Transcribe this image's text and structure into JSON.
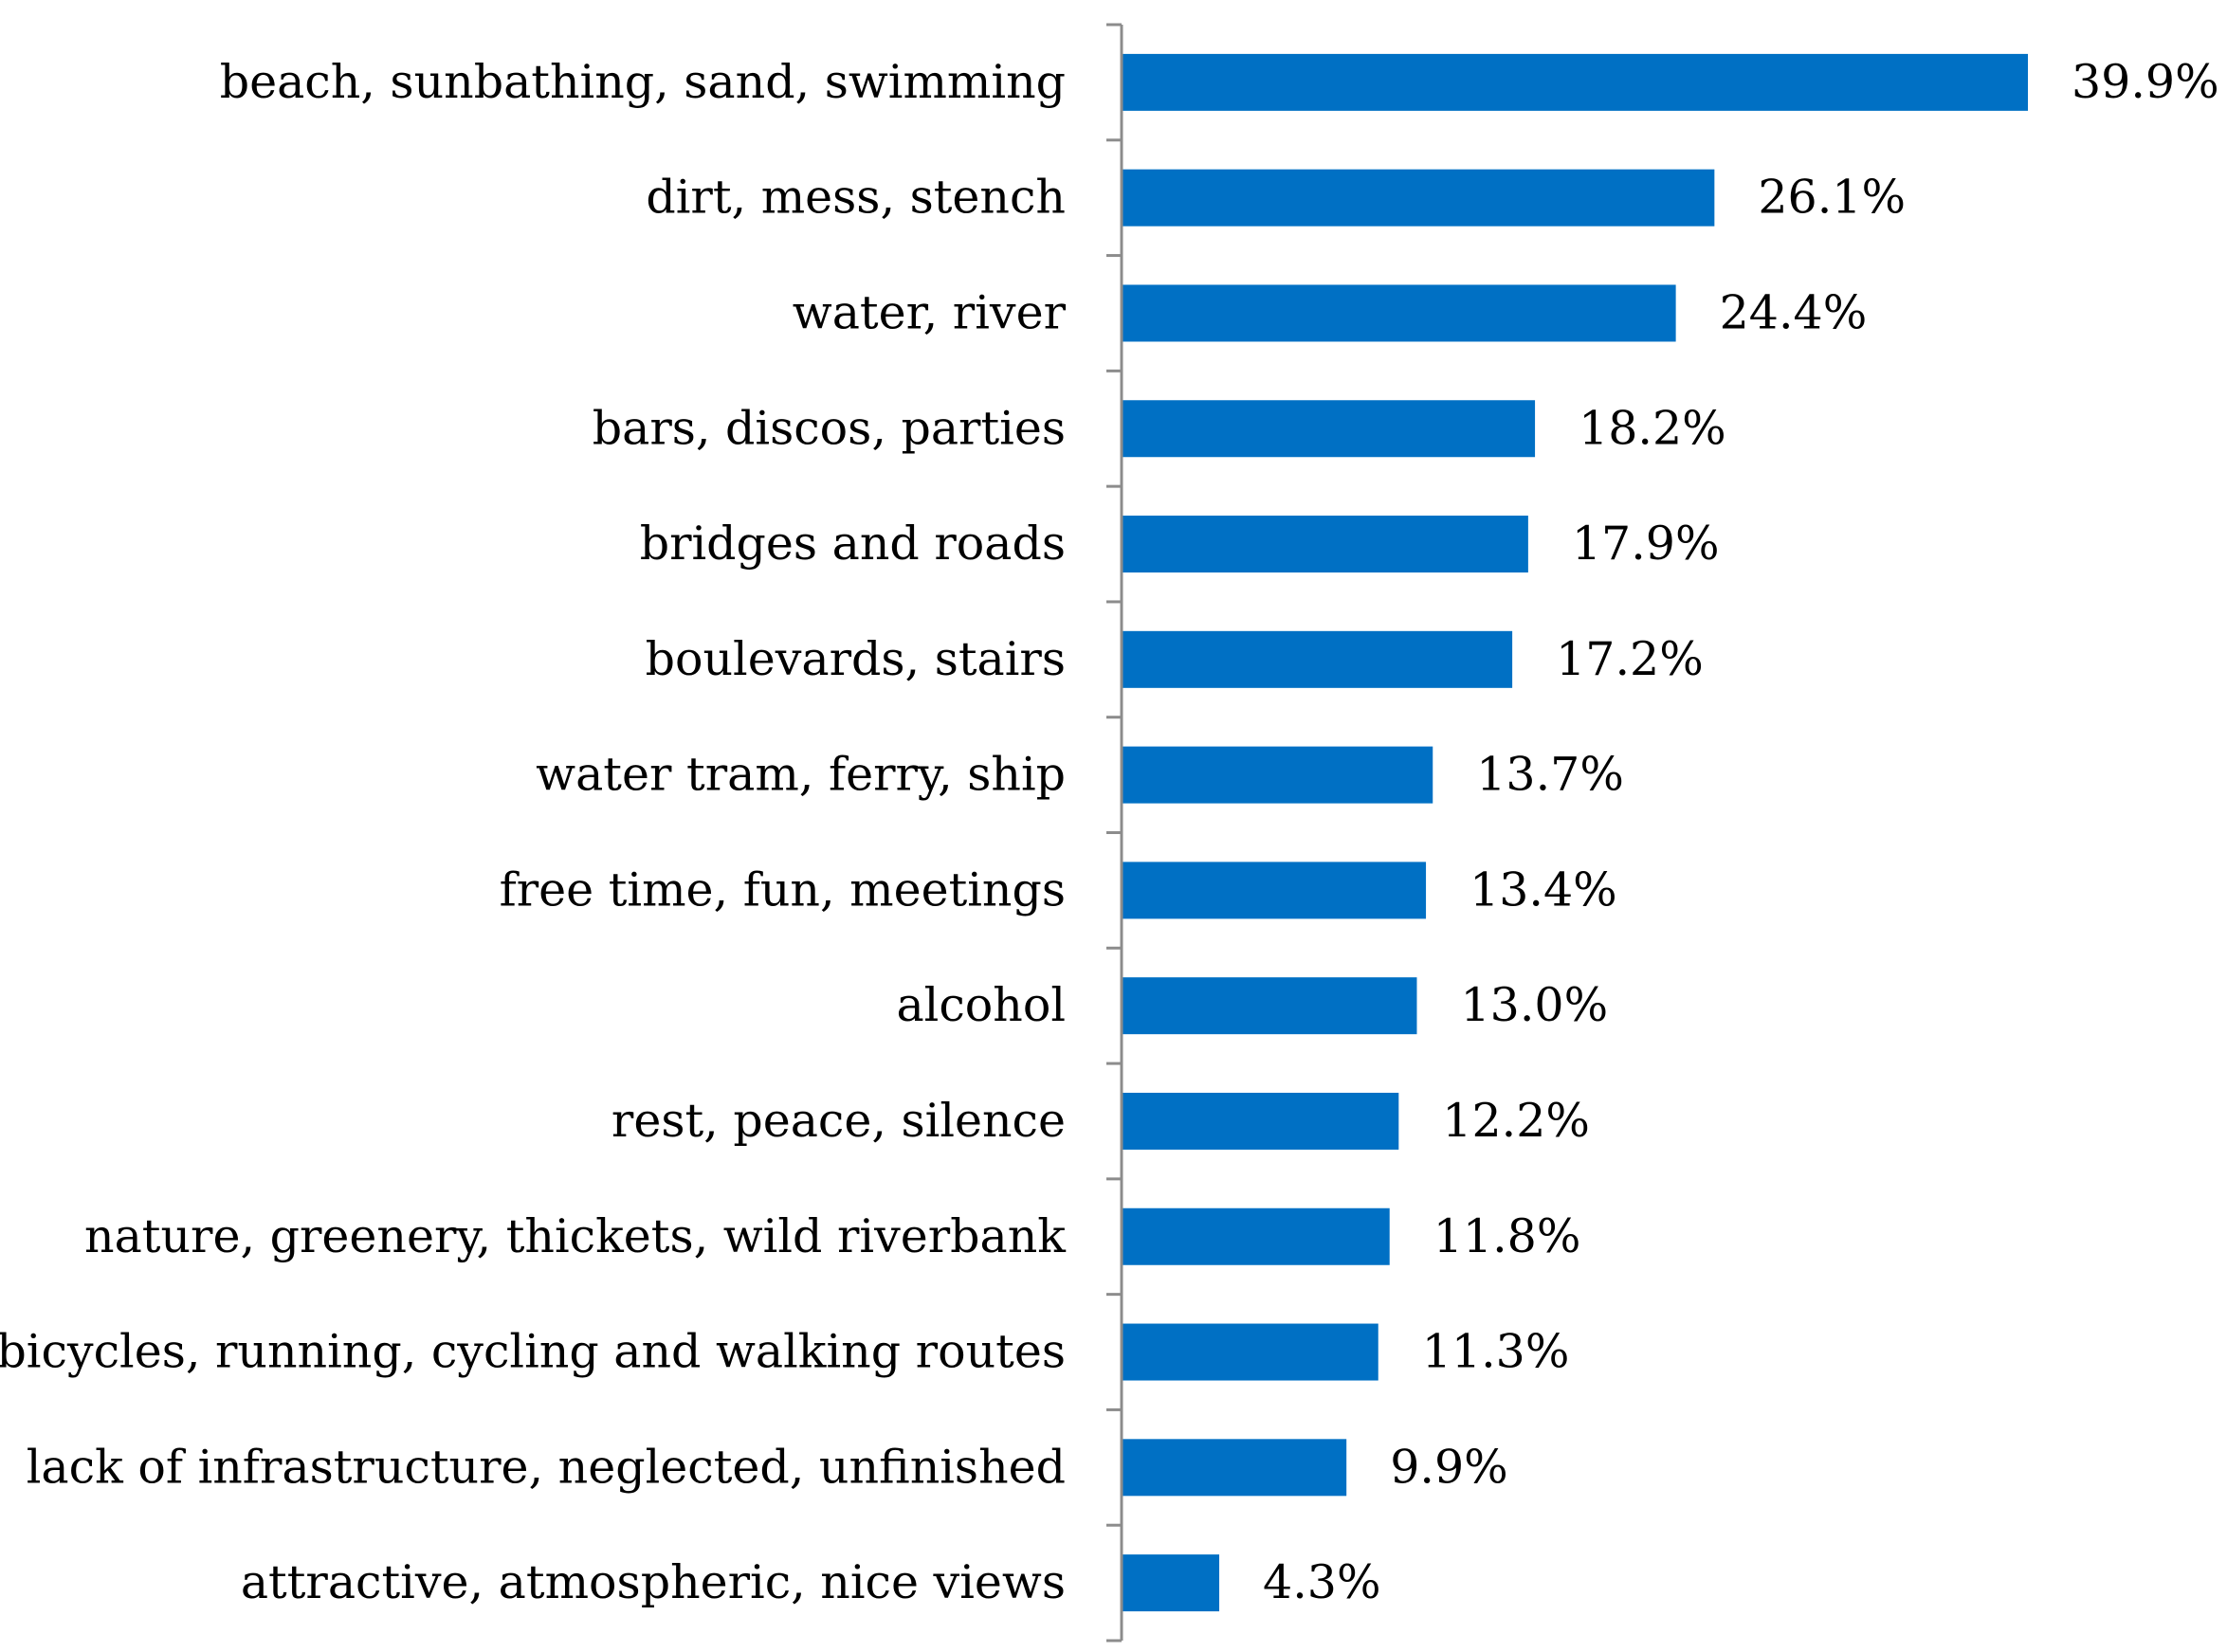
{
  "chart_data": {
    "type": "bar",
    "orientation": "horizontal",
    "title": "",
    "xlabel": "",
    "ylabel": "",
    "categories": [
      "beach, sunbathing, sand, swimming",
      "dirt, mess, stench",
      "water, river",
      "bars, discos, parties",
      "bridges and roads",
      "boulevards, stairs",
      "water tram, ferry, ship",
      "free time, fun, meetings",
      "alcohol",
      "rest, peace, silence",
      "nature, greenery, thickets, wild riverbank",
      "bicycles, running, cycling and walking routes",
      "lack of infrastructure, neglected, unfinished",
      "attractive, atmospheric, nice views"
    ],
    "values": [
      39.9,
      26.1,
      24.4,
      18.2,
      17.9,
      17.2,
      13.7,
      13.4,
      13.0,
      12.2,
      11.8,
      11.3,
      9.9,
      4.3
    ],
    "value_labels": [
      "39.9%",
      "26.1%",
      "24.4%",
      "18.2%",
      "17.9%",
      "17.2%",
      "13.7%",
      "13.4%",
      "13.0%",
      "12.2%",
      "11.8%",
      "11.3%",
      "9.9%",
      "4.3%"
    ],
    "xlim": [
      0,
      40
    ],
    "grid": false,
    "legend": "none",
    "colors": {
      "bar": "#0070C4",
      "axis": "#8c8c8c",
      "text": "#000000"
    }
  }
}
